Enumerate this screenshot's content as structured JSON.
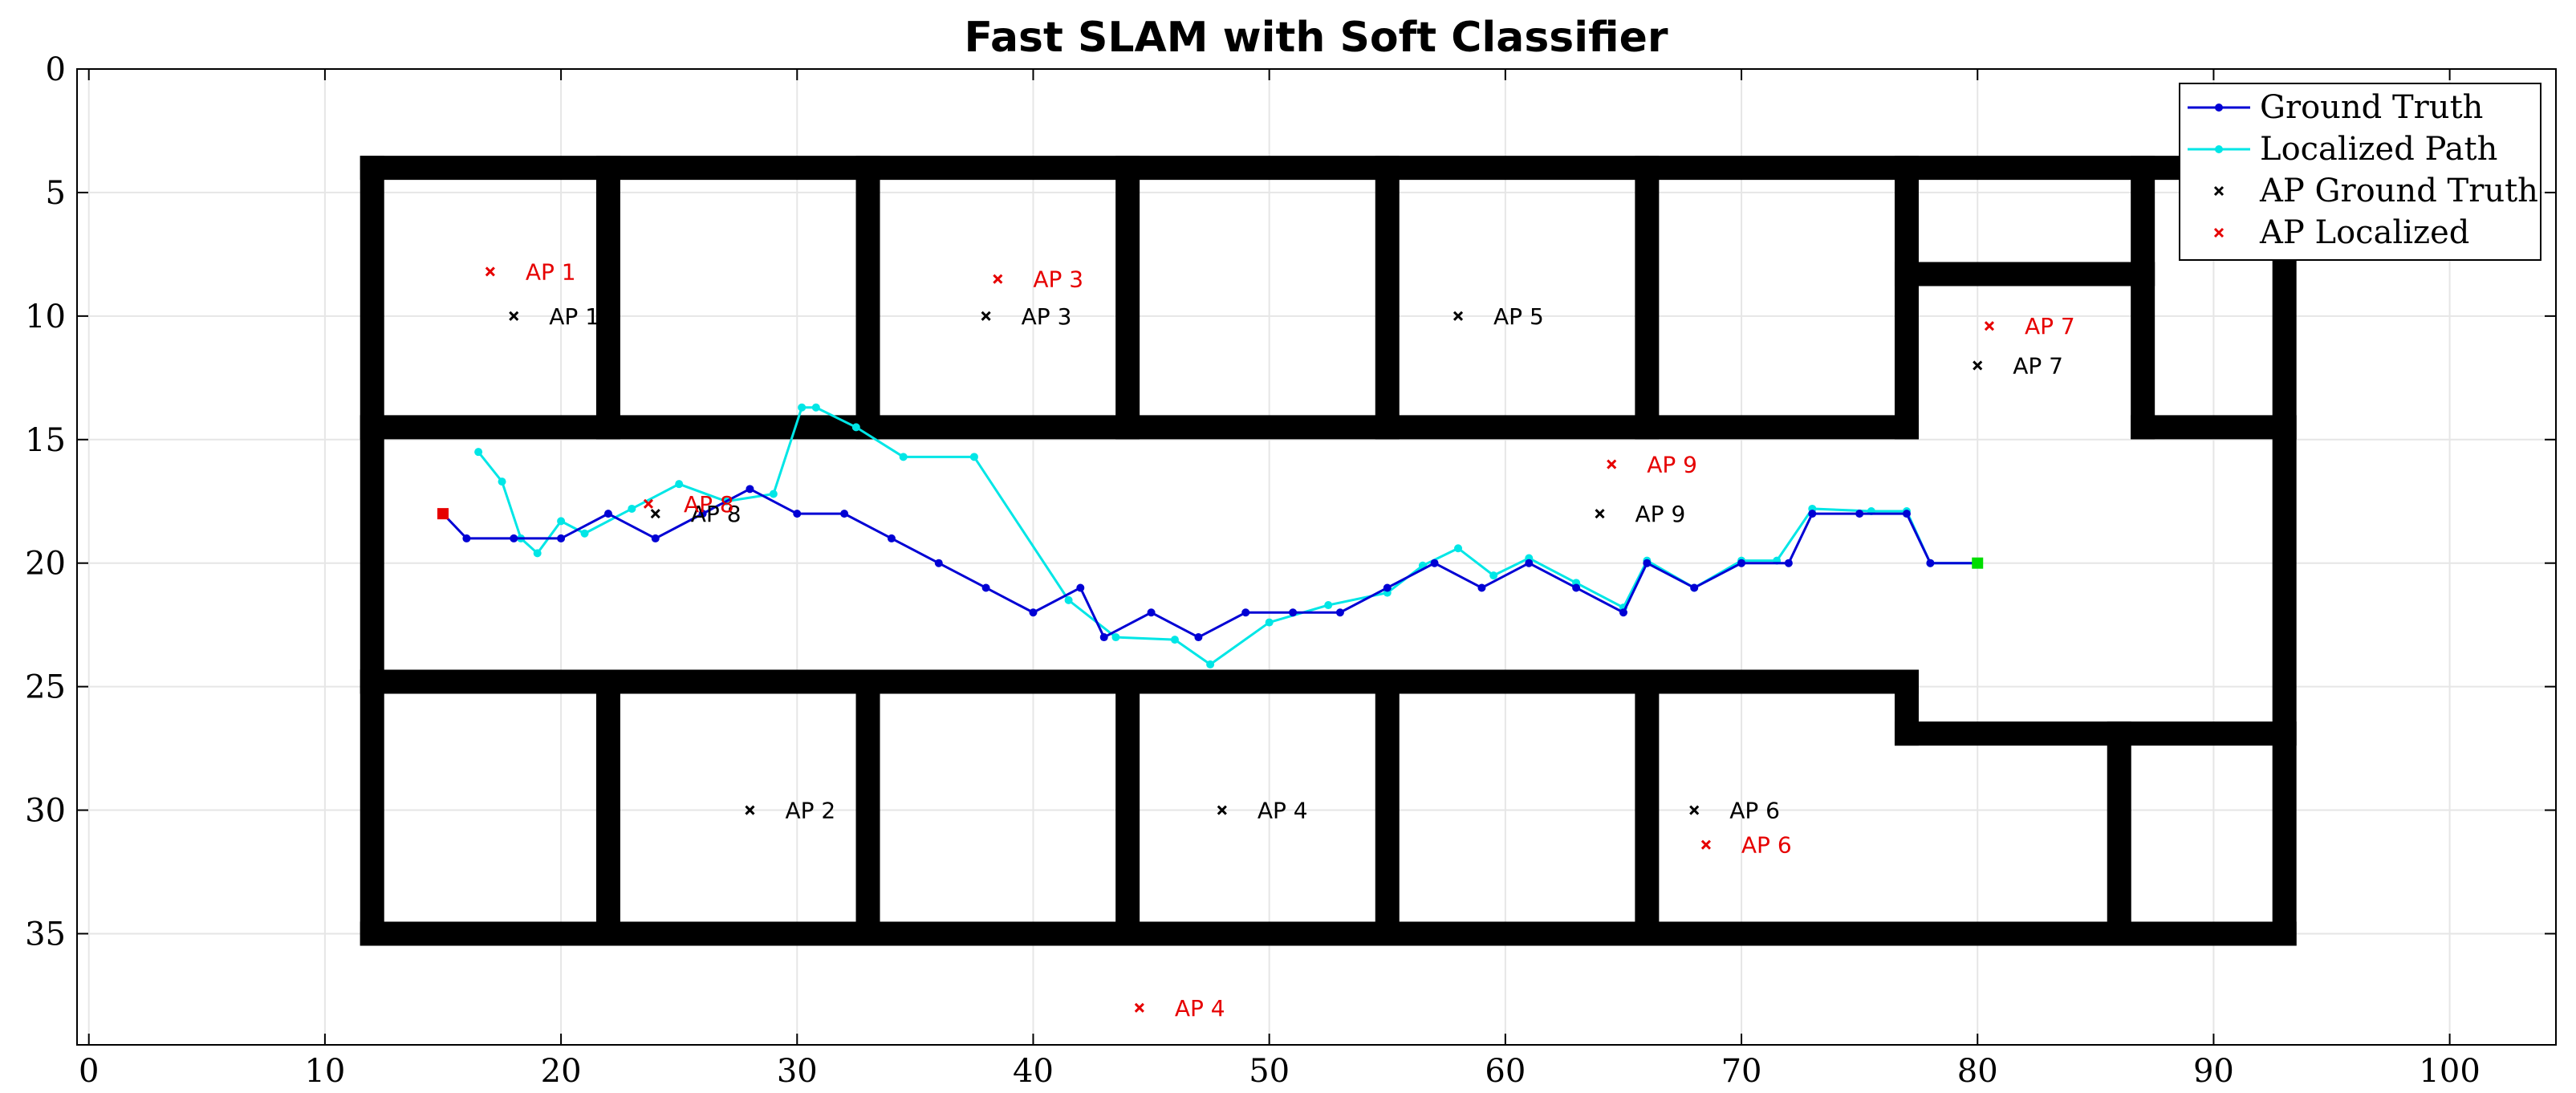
{
  "chart_data": {
    "type": "line",
    "title": "Fast SLAM with Soft Classifier",
    "xlim": [
      -0.5,
      104.5
    ],
    "ylim": [
      0,
      39.5
    ],
    "y_reversed": true,
    "x_ticks": [
      0,
      10,
      20,
      30,
      40,
      50,
      60,
      70,
      80,
      90,
      100
    ],
    "y_ticks": [
      0,
      5,
      10,
      15,
      20,
      25,
      30,
      35
    ],
    "grid": true,
    "legend_position": "top-right",
    "colors": {
      "ground_truth": "#0000d4",
      "localized": "#00e6e6",
      "ap_truth": "#000000",
      "ap_localized": "#e60000",
      "wall": "#000000",
      "start": "#e60000",
      "end": "#00dd00"
    },
    "series": [
      {
        "name": "Ground Truth",
        "points": [
          [
            15,
            18
          ],
          [
            16,
            19
          ],
          [
            18,
            19
          ],
          [
            20,
            19
          ],
          [
            22,
            18
          ],
          [
            24,
            19
          ],
          [
            26,
            18
          ],
          [
            28,
            17
          ],
          [
            30,
            18
          ],
          [
            32,
            18
          ],
          [
            34,
            19
          ],
          [
            36,
            20
          ],
          [
            38,
            21
          ],
          [
            40,
            22
          ],
          [
            42,
            21
          ],
          [
            43,
            23
          ],
          [
            45,
            22
          ],
          [
            47,
            23
          ],
          [
            49,
            22
          ],
          [
            51,
            22
          ],
          [
            53,
            22
          ],
          [
            55,
            21
          ],
          [
            57,
            20
          ],
          [
            59,
            21
          ],
          [
            61,
            20
          ],
          [
            63,
            21
          ],
          [
            65,
            22
          ],
          [
            66,
            20
          ],
          [
            68,
            21
          ],
          [
            70,
            20
          ],
          [
            72,
            20
          ],
          [
            73,
            18
          ],
          [
            75,
            18
          ],
          [
            77,
            18
          ],
          [
            78,
            20
          ],
          [
            80,
            20
          ]
        ]
      },
      {
        "name": "Localized Path",
        "points": [
          [
            16.5,
            15.5
          ],
          [
            17.5,
            16.7
          ],
          [
            18.3,
            19
          ],
          [
            19,
            19.6
          ],
          [
            20,
            18.3
          ],
          [
            21,
            18.8
          ],
          [
            23,
            17.8
          ],
          [
            25,
            16.8
          ],
          [
            27,
            17.5
          ],
          [
            29,
            17.2
          ],
          [
            30.2,
            13.7
          ],
          [
            30.8,
            13.7
          ],
          [
            32.5,
            14.5
          ],
          [
            34.5,
            15.7
          ],
          [
            37.5,
            15.7
          ],
          [
            41.5,
            21.5
          ],
          [
            43.5,
            23
          ],
          [
            46,
            23.1
          ],
          [
            47.5,
            24.1
          ],
          [
            50,
            22.4
          ],
          [
            52.5,
            21.7
          ],
          [
            55,
            21.2
          ],
          [
            56.5,
            20.1
          ],
          [
            58,
            19.4
          ],
          [
            59.5,
            20.5
          ],
          [
            61,
            19.8
          ],
          [
            63,
            20.8
          ],
          [
            65,
            21.8
          ],
          [
            66,
            19.9
          ],
          [
            68,
            21
          ],
          [
            70,
            19.9
          ],
          [
            71.5,
            19.9
          ],
          [
            73,
            17.8
          ],
          [
            75.5,
            17.9
          ],
          [
            77,
            17.9
          ],
          [
            78,
            20
          ],
          [
            80,
            20
          ]
        ]
      }
    ],
    "start_point": [
      15,
      18
    ],
    "end_point": [
      80,
      20
    ],
    "ap_ground_truth": [
      {
        "label": "AP 1",
        "x": 18,
        "y": 10
      },
      {
        "label": "AP 2",
        "x": 28,
        "y": 30
      },
      {
        "label": "AP 3",
        "x": 38,
        "y": 10
      },
      {
        "label": "AP 4",
        "x": 48,
        "y": 30
      },
      {
        "label": "AP 5",
        "x": 58,
        "y": 10
      },
      {
        "label": "AP 6",
        "x": 68,
        "y": 30
      },
      {
        "label": "AP 7",
        "x": 80,
        "y": 12
      },
      {
        "label": "AP 8",
        "x": 24,
        "y": 18
      },
      {
        "label": "AP 9",
        "x": 64,
        "y": 18
      }
    ],
    "ap_localized": [
      {
        "label": "AP 1",
        "x": 17,
        "y": 8.2
      },
      {
        "label": "AP 3",
        "x": 38.5,
        "y": 8.5
      },
      {
        "label": "AP 4",
        "x": 44.5,
        "y": 38
      },
      {
        "label": "AP 6",
        "x": 68.5,
        "y": 31.4
      },
      {
        "label": "AP 7",
        "x": 80.5,
        "y": 10.4
      },
      {
        "label": "AP 8",
        "x": 23.7,
        "y": 17.6
      },
      {
        "label": "AP 9",
        "x": 64.5,
        "y": 16
      }
    ],
    "legend": [
      {
        "label": "Ground Truth",
        "kind": "line",
        "color": "#0000d4"
      },
      {
        "label": "Localized Path",
        "kind": "line",
        "color": "#00e6e6"
      },
      {
        "label": "AP Ground Truth",
        "kind": "marker",
        "color": "#000000"
      },
      {
        "label": "AP Localized",
        "kind": "marker",
        "color": "#e60000"
      }
    ],
    "walls": [
      [
        12,
        4,
        93,
        4
      ],
      [
        12,
        35,
        93,
        35
      ],
      [
        12,
        4,
        12,
        35
      ],
      [
        93,
        4,
        93,
        35
      ],
      [
        12,
        14.5,
        77,
        14.5
      ],
      [
        12,
        24.8,
        77,
        24.8
      ],
      [
        77,
        14.5,
        77,
        4
      ],
      [
        77,
        24.8,
        77,
        26.9
      ],
      [
        77,
        26.9,
        93,
        26.9
      ],
      [
        77,
        8.3,
        87,
        8.3
      ],
      [
        87,
        4,
        87,
        14.5
      ],
      [
        87,
        14.5,
        93,
        14.5
      ],
      [
        22,
        4,
        22,
        14.5
      ],
      [
        33,
        4,
        33,
        14.5
      ],
      [
        44,
        4,
        44,
        14.5
      ],
      [
        55,
        4,
        55,
        14.5
      ],
      [
        66,
        4,
        66,
        14.5
      ],
      [
        22,
        24.8,
        22,
        35
      ],
      [
        33,
        24.8,
        33,
        35
      ],
      [
        44,
        24.8,
        44,
        35
      ],
      [
        55,
        24.8,
        55,
        35
      ],
      [
        66,
        24.8,
        66,
        35
      ],
      [
        86,
        26.9,
        86,
        35
      ]
    ]
  }
}
